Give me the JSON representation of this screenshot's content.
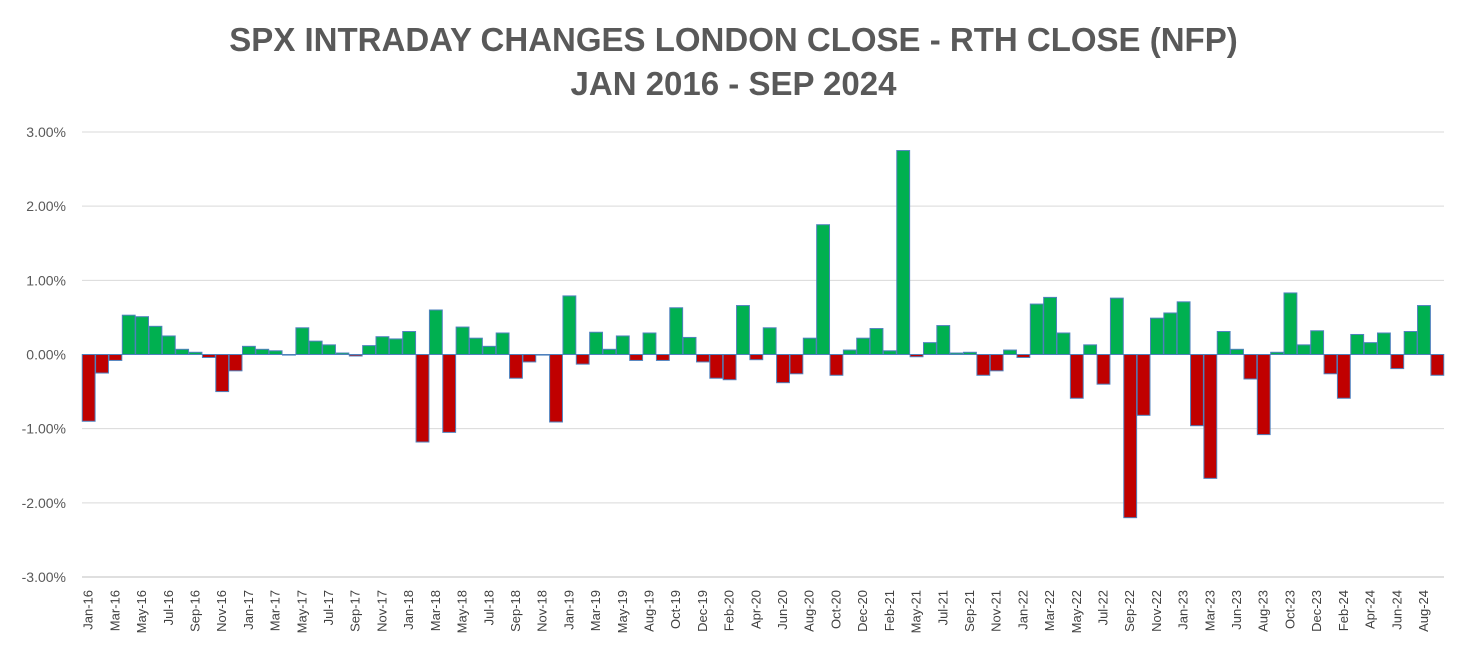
{
  "chart_data": {
    "type": "bar",
    "title": "SPX INTRADAY CHANGES LONDON CLOSE - RTH CLOSE (NFP)",
    "subtitle": "JAN 2016 - SEP 2024",
    "xlabel": "",
    "ylabel": "",
    "ylim": [
      -3.0,
      3.0
    ],
    "ytick_values": [
      -3,
      -2,
      -1,
      0,
      1,
      2,
      3
    ],
    "ytick_labels": [
      "-3.00%",
      "-2.00%",
      "-1.00%",
      "0.00%",
      "1.00%",
      "2.00%",
      "3.00%"
    ],
    "grid": true,
    "legend": "none",
    "colors": {
      "positive": "#00B050",
      "negative": "#C00000",
      "edge": "#4F81BD",
      "grid": "#D9D9D9",
      "text": "#595959"
    },
    "categories": [
      "Jan-16",
      "Feb-16",
      "Mar-16",
      "Apr-16",
      "May-16",
      "Jun-16",
      "Jul-16",
      "Aug-16",
      "Sep-16",
      "Oct-16",
      "Nov-16",
      "Dec-16",
      "Jan-17",
      "Feb-17",
      "Mar-17",
      "Apr-17",
      "May-17",
      "Jun-17",
      "Jul-17",
      "Aug-17",
      "Sep-17",
      "Oct-17",
      "Nov-17",
      "Dec-17",
      "Jan-18",
      "Feb-18",
      "Mar-18",
      "Apr-18",
      "May-18",
      "Jun-18",
      "Jul-18",
      "Aug-18",
      "Sep-18",
      "Oct-18",
      "Nov-18",
      "Dec-18",
      "Jan-19",
      "Feb-19",
      "Mar-19",
      "Apr-19",
      "May-19",
      "Jun-19",
      "Aug-19",
      "Sep-19",
      "Oct-19",
      "Nov-19",
      "Dec-19",
      "Jan-20",
      "Feb-20",
      "Mar-20",
      "Apr-20",
      "May-20",
      "Jun-20",
      "Jul-20",
      "Aug-20",
      "Sep-20",
      "Oct-20",
      "Nov-20",
      "Dec-20",
      "Jan-21",
      "Feb-21",
      "Mar-21",
      "May-21",
      "Jun-21",
      "Jul-21",
      "Aug-21",
      "Sep-21",
      "Oct-21",
      "Nov-21",
      "Dec-21",
      "Jan-22",
      "Feb-22",
      "Mar-22",
      "Apr-22",
      "May-22",
      "Jun-22",
      "Jul-22",
      "Aug-22",
      "Sep-22",
      "Oct-22",
      "Nov-22",
      "Dec-22",
      "Jan-23",
      "Feb-23",
      "Mar-23",
      "Apr-23",
      "Jun-23",
      "Jul-23",
      "Aug-23",
      "Sep-23",
      "Oct-23",
      "Nov-23",
      "Dec-23",
      "Jan-24",
      "Feb-24",
      "Mar-24",
      "Apr-24",
      "May-24",
      "Jun-24",
      "Jul-24",
      "Aug-24",
      "Sep-24"
    ],
    "tick_labels": [
      "Jan-16",
      "Mar-16",
      "May-16",
      "Jul-16",
      "Sep-16",
      "Nov-16",
      "Jan-17",
      "Mar-17",
      "May-17",
      "Jul-17",
      "Sep-17",
      "Nov-17",
      "Jan-18",
      "Mar-18",
      "May-18",
      "Jul-18",
      "Sep-18",
      "Nov-18",
      "Jan-19",
      "Mar-19",
      "May-19",
      "Aug-19",
      "Oct-19",
      "Dec-19",
      "Feb-20",
      "Apr-20",
      "Jun-20",
      "Aug-20",
      "Oct-20",
      "Dec-20",
      "Feb-21",
      "May-21",
      "Jul-21",
      "Sep-21",
      "Nov-21",
      "Jan-22",
      "Mar-22",
      "May-22",
      "Jul-22",
      "Sep-22",
      "Nov-22",
      "Jan-23",
      "Mar-23",
      "Jun-23",
      "Aug-23",
      "Oct-23",
      "Dec-23",
      "Feb-24",
      "Apr-24",
      "Jun-24",
      "Aug-24"
    ],
    "values": [
      -0.9,
      -0.25,
      -0.08,
      0.53,
      0.51,
      0.38,
      0.25,
      0.07,
      0.03,
      -0.04,
      -0.5,
      -0.22,
      0.11,
      0.07,
      0.05,
      0.0,
      0.36,
      0.18,
      0.13,
      0.02,
      -0.02,
      0.12,
      0.24,
      0.21,
      0.31,
      -1.18,
      0.6,
      -1.05,
      0.37,
      0.22,
      0.11,
      0.29,
      -0.32,
      -0.1,
      0.0,
      -0.91,
      0.79,
      -0.13,
      0.3,
      0.07,
      0.25,
      -0.08,
      0.29,
      -0.08,
      0.63,
      0.23,
      -0.1,
      -0.32,
      -0.34,
      0.66,
      -0.07,
      0.36,
      -0.38,
      -0.26,
      0.22,
      1.75,
      -0.28,
      0.06,
      0.22,
      0.35,
      0.05,
      2.75,
      -0.03,
      0.16,
      0.39,
      0.02,
      0.03,
      -0.28,
      -0.22,
      0.06,
      -0.04,
      0.68,
      0.77,
      0.29,
      -0.59,
      0.13,
      -0.4,
      0.76,
      -2.2,
      -0.82,
      0.49,
      0.56,
      0.71,
      -0.96,
      -1.67,
      0.31,
      0.07,
      -0.33,
      -1.08,
      0.03,
      0.83,
      0.13,
      0.32,
      -0.26,
      -0.59,
      0.27,
      0.16,
      0.29,
      -0.19,
      0.31,
      0.66,
      -0.28
    ]
  }
}
